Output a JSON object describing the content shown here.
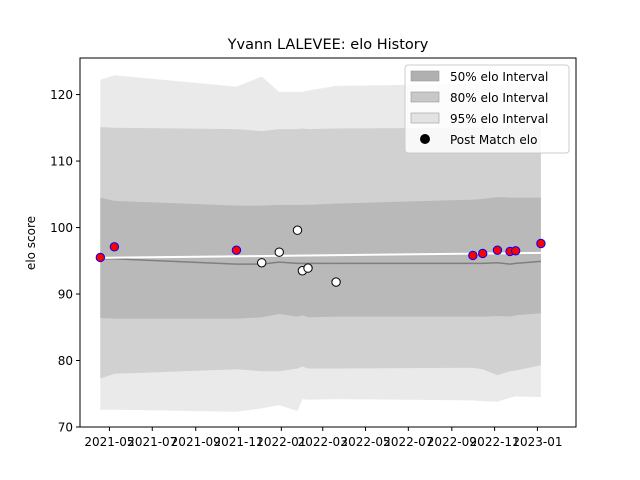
{
  "chart_data": {
    "type": "area",
    "title": "Yvann LALEVEE: elo History",
    "xlabel": "",
    "ylabel": "elo score",
    "xlim": [
      "2021-03-20",
      "2023-02-25"
    ],
    "ylim": [
      70,
      125.5
    ],
    "grid": false,
    "legend_position": "top-right",
    "x_ticks": [
      "2021-05-01",
      "2021-07-01",
      "2021-09-01",
      "2021-11-01",
      "2022-01-01",
      "2022-03-01",
      "2022-05-01",
      "2022-07-01",
      "2022-09-01",
      "2022-11-01",
      "2023-01-01"
    ],
    "x_tick_labels": [
      "2021-05",
      "2021-07",
      "2021-09",
      "2021-11",
      "2022-01",
      "2022-03",
      "2022-05",
      "2022-07",
      "2022-09",
      "2022-11",
      "2023-01"
    ],
    "y_ticks": [
      70,
      80,
      90,
      100,
      110,
      120
    ],
    "x": [
      "2021-04-18",
      "2021-05-08",
      "2021-10-29",
      "2021-12-04",
      "2021-12-29",
      "2022-01-24",
      "2022-01-31",
      "2022-02-08",
      "2022-03-20",
      "2022-10-01",
      "2022-10-15",
      "2022-11-05",
      "2022-11-23",
      "2022-12-01",
      "2023-01-06"
    ],
    "mean_elo": [
      95.3,
      95.3,
      94.5,
      94.5,
      94.8,
      94.6,
      94.6,
      94.6,
      94.6,
      94.6,
      94.6,
      94.7,
      94.5,
      94.6,
      94.9
    ],
    "bands": [
      {
        "name": "50% elo Interval",
        "color": "#b0b0b0",
        "lower": [
          86.4,
          86.3,
          86.3,
          86.5,
          87.0,
          86.6,
          86.8,
          86.5,
          86.6,
          86.6,
          86.6,
          86.7,
          86.6,
          86.8,
          87.1
        ],
        "upper": [
          104.5,
          104.0,
          103.3,
          103.3,
          103.4,
          103.4,
          103.4,
          103.4,
          103.6,
          104.2,
          104.3,
          104.6,
          104.5,
          104.5,
          104.5
        ]
      },
      {
        "name": "80% elo Interval",
        "color": "#c8c8c8",
        "lower": [
          77.3,
          78.0,
          78.7,
          78.4,
          78.4,
          78.8,
          79.1,
          78.8,
          78.8,
          78.9,
          78.7,
          77.8,
          78.4,
          78.5,
          79.3
        ],
        "upper": [
          115.1,
          115.0,
          114.8,
          114.5,
          114.8,
          114.8,
          114.9,
          114.8,
          114.9,
          115.0,
          115.0,
          115.0,
          115.0,
          115.0,
          115.1
        ]
      },
      {
        "name": "95% elo Interval",
        "color": "#e3e3e3",
        "lower": [
          72.6,
          72.6,
          72.3,
          72.8,
          73.3,
          72.4,
          74.2,
          74.1,
          74.2,
          74.0,
          73.9,
          73.8,
          74.4,
          74.6,
          74.5
        ],
        "upper": [
          122.2,
          122.9,
          121.2,
          122.7,
          120.4,
          120.4,
          120.4,
          120.6,
          121.3,
          121.6,
          121.6,
          121.2,
          121.9,
          121.8,
          121.2
        ]
      }
    ],
    "post_match_elo": {
      "name": "Post Match elo",
      "points": [
        {
          "x": "2021-04-18",
          "y": 95.5,
          "win": true
        },
        {
          "x": "2021-05-08",
          "y": 97.1,
          "win": true
        },
        {
          "x": "2021-10-29",
          "y": 96.6,
          "win": true
        },
        {
          "x": "2021-12-04",
          "y": 94.7,
          "win": false
        },
        {
          "x": "2021-12-29",
          "y": 96.3,
          "win": false
        },
        {
          "x": "2022-01-24",
          "y": 99.6,
          "win": false
        },
        {
          "x": "2022-01-31",
          "y": 93.5,
          "win": false
        },
        {
          "x": "2022-02-08",
          "y": 93.9,
          "win": false
        },
        {
          "x": "2022-03-20",
          "y": 91.8,
          "win": false
        },
        {
          "x": "2022-10-01",
          "y": 95.8,
          "win": true
        },
        {
          "x": "2022-10-15",
          "y": 96.1,
          "win": true
        },
        {
          "x": "2022-11-05",
          "y": 96.6,
          "win": true
        },
        {
          "x": "2022-11-23",
          "y": 96.4,
          "win": true
        },
        {
          "x": "2022-12-01",
          "y": 96.5,
          "win": true
        },
        {
          "x": "2023-01-06",
          "y": 97.6,
          "win": true
        }
      ]
    },
    "colors": {
      "mean_line": "#7f7f7f",
      "trend_line": "#ffffff",
      "win_marker_fill": "#ff0000",
      "win_marker_edge": "#0000ff",
      "loss_marker_fill": "#ffffff",
      "loss_marker_edge": "#000000"
    }
  }
}
